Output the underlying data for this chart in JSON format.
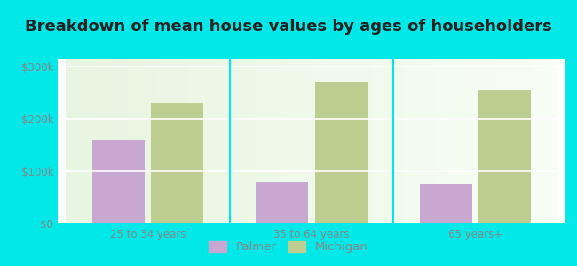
{
  "title": "Breakdown of mean house values by ages of householders",
  "categories": [
    "25 to 34 years",
    "35 to 64 years",
    "65 years+"
  ],
  "palmer_values": [
    160000,
    80000,
    75000
  ],
  "michigan_values": [
    230000,
    270000,
    255000
  ],
  "palmer_color": "#c8a8d0",
  "michigan_color": "#bece90",
  "background_outer": "#00e8e8",
  "background_inner_top": "#d8efd8",
  "background_inner_bottom": "#eefaee",
  "yticks": [
    0,
    100000,
    200000,
    300000
  ],
  "ytick_labels": [
    "$0",
    "$100k",
    "$200k",
    "$300k"
  ],
  "ylim": [
    0,
    315000
  ],
  "legend_labels": [
    "Palmer",
    "Michigan"
  ],
  "bar_width": 0.32,
  "title_fontsize": 13,
  "tick_fontsize": 8.5,
  "legend_fontsize": 9.5,
  "tick_color": "#888888",
  "title_color": "#222222"
}
